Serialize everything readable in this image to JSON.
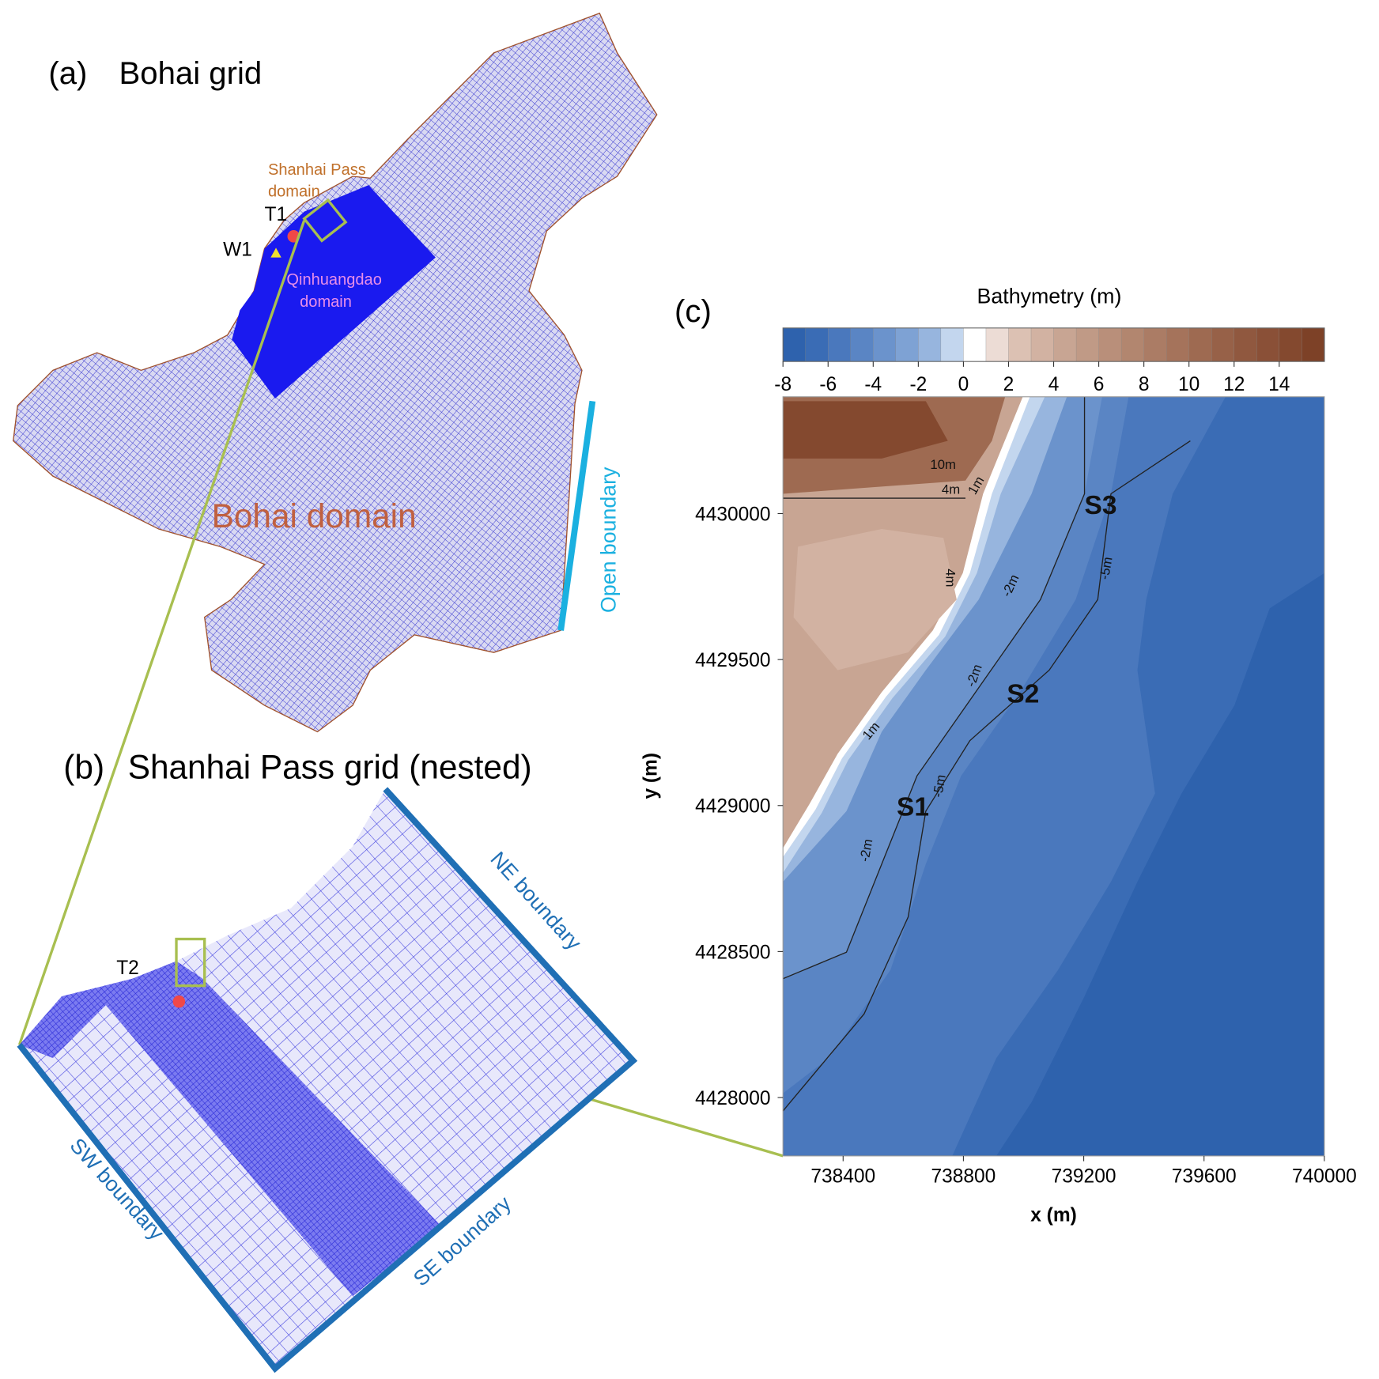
{
  "panel_a": {
    "label": "(a)",
    "title": "Bohai grid",
    "shanhai_label": [
      "Shanhai Pass",
      "domain"
    ],
    "t1": "T1",
    "w1": "W1",
    "qinhuangdao_label": [
      "Qinhuangdao",
      "domain"
    ],
    "domain_label": "Bohai domain",
    "boundary_label": "Open boundary"
  },
  "panel_b": {
    "label": "(b)",
    "title": "Shanhai Pass grid (nested)",
    "t2": "T2",
    "boundaries": [
      "NE boundary",
      "SE boundary",
      "SW boundary"
    ]
  },
  "chart_data": {
    "type": "contour",
    "panel_label": "(c)",
    "colorbar_title": "Bathymetry (m)",
    "colorbar_lim": [
      -8,
      16
    ],
    "colorbar_ticks": [
      -8,
      -6,
      -4,
      -2,
      0,
      2,
      4,
      6,
      8,
      10,
      12,
      14
    ],
    "colors": [
      "#2e62ad",
      "#3a6cb5",
      "#4a78bd",
      "#5a85c4",
      "#6b93cc",
      "#7ea2d4",
      "#97b5de",
      "#c3d6ee",
      "#ffffff",
      "#ecdcd5",
      "#dcc1b3",
      "#d2b2a2",
      "#c8a593",
      "#c09a86",
      "#b98f7a",
      "#b2866f",
      "#ab7c65",
      "#a5735b",
      "#9e6a51",
      "#976148",
      "#90583f",
      "#8a5037",
      "#84492f",
      "#7d4127"
    ],
    "xlabel": "x (m)",
    "ylabel": "y (m)",
    "xlim": [
      738200,
      740000
    ],
    "xticks": [
      738400,
      738800,
      739200,
      739600,
      740000
    ],
    "ylim": [
      4427800,
      4430400
    ],
    "yticks": [
      4428000,
      4428500,
      4429000,
      4429500,
      4430000
    ],
    "contour_labels": [
      "10m",
      "4m",
      "1m",
      "4m",
      "-2m",
      "-5m",
      "-2m",
      "1m",
      "-5m",
      "-2m"
    ],
    "sites": [
      "S1",
      "S2",
      "S3"
    ]
  }
}
